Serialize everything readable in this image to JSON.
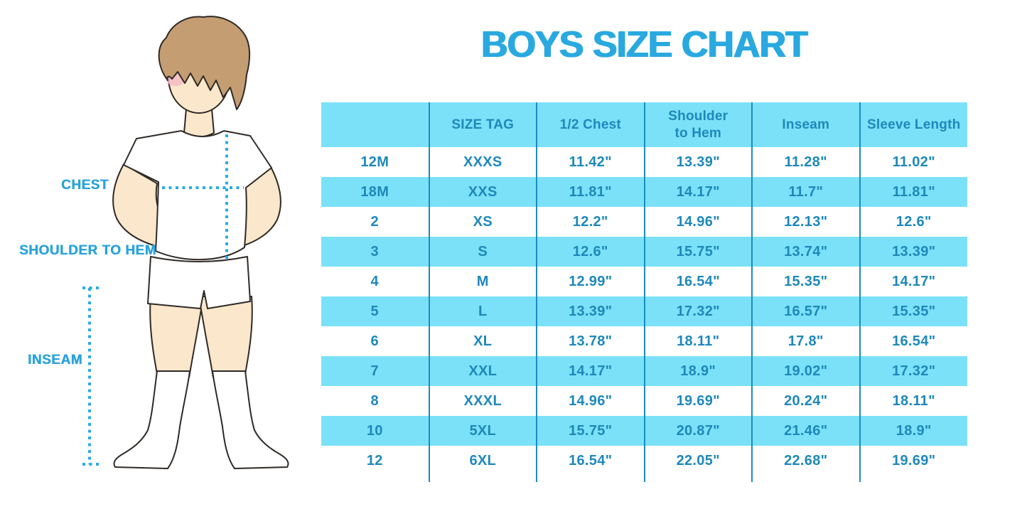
{
  "title": "BOYS SIZE CHART",
  "figure": {
    "labels": {
      "chest": "CHEST",
      "shoulder_to_hem": "SHOULDER TO HEM",
      "inseam": "INSEAM"
    }
  },
  "chart_data": {
    "type": "table",
    "title": "BOYS SIZE CHART",
    "columns": [
      "",
      "SIZE TAG",
      "1/2 Chest",
      "Shoulder to Hem",
      "Inseam",
      "Sleeve Length"
    ],
    "rows": [
      [
        "12M",
        "XXXS",
        "11.42\"",
        "13.39\"",
        "11.28\"",
        "11.02\""
      ],
      [
        "18M",
        "XXS",
        "11.81\"",
        "14.17\"",
        "11.7\"",
        "11.81\""
      ],
      [
        "2",
        "XS",
        "12.2\"",
        "14.96\"",
        "12.13\"",
        "12.6\""
      ],
      [
        "3",
        "S",
        "12.6\"",
        "15.75\"",
        "13.74\"",
        "13.39\""
      ],
      [
        "4",
        "M",
        "12.99\"",
        "16.54\"",
        "15.35\"",
        "14.17\""
      ],
      [
        "5",
        "L",
        "13.39\"",
        "17.32\"",
        "16.57\"",
        "15.35\""
      ],
      [
        "6",
        "XL",
        "13.78\"",
        "18.11\"",
        "17.8\"",
        "16.54\""
      ],
      [
        "7",
        "XXL",
        "14.17\"",
        "18.9\"",
        "19.02\"",
        "17.32\""
      ],
      [
        "8",
        "XXXL",
        "14.96\"",
        "19.69\"",
        "20.24\"",
        "18.11\""
      ],
      [
        "10",
        "5XL",
        "15.75\"",
        "20.87\"",
        "21.46\"",
        "18.9\""
      ],
      [
        "12",
        "6XL",
        "16.54\"",
        "22.05\"",
        "22.68\"",
        "19.69\""
      ]
    ]
  },
  "colors": {
    "title_blue": "#29A9E0",
    "label_blue": "#29A3DC",
    "row_fill_blue": "#7BE1F9",
    "table_text_blue": "#1E88BA",
    "grid_line_blue": "#1B8CBE",
    "dotted_line_blue": "#29ABE2",
    "hair_brown": "#C59D72",
    "skin_tone": "#FBE7CB",
    "blush_pink": "#F4BAC7"
  }
}
